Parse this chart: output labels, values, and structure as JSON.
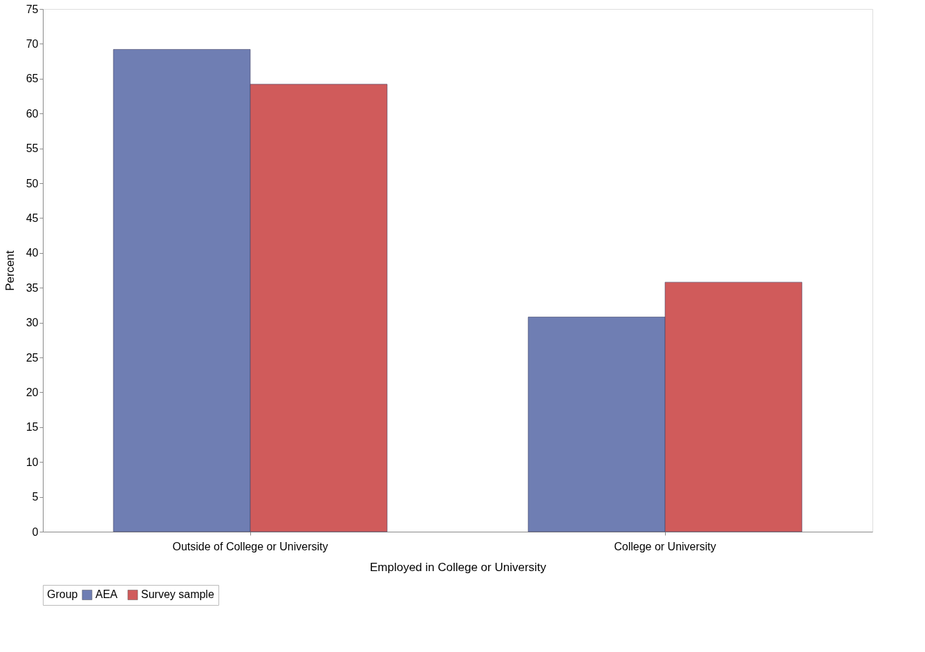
{
  "chart_data": {
    "type": "bar",
    "xlabel": "Employed in College or University",
    "ylabel": "Percent",
    "legend_title": "Group",
    "categories": [
      "Outside of College or University",
      "College or University"
    ],
    "series": [
      {
        "name": "AEA",
        "color": "#6f7eb3",
        "values": [
          69.2,
          30.8
        ]
      },
      {
        "name": "Survey sample",
        "color": "#d05b5b",
        "values": [
          64.2,
          35.8
        ]
      }
    ],
    "ylim": [
      0,
      75
    ],
    "yticks": [
      0,
      5,
      10,
      15,
      20,
      25,
      30,
      35,
      40,
      45,
      50,
      55,
      60,
      65,
      70,
      75
    ],
    "grid": false,
    "legend": "bottom"
  }
}
